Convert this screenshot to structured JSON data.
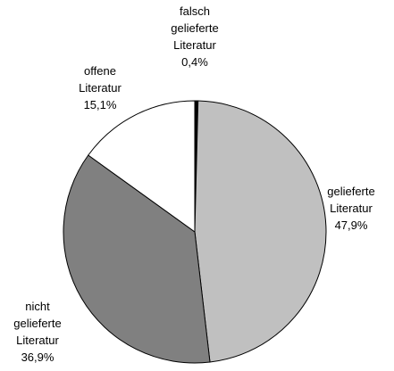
{
  "chart_data": {
    "type": "pie",
    "categories": [
      "falsch gelieferte Literatur",
      "gelieferte Literatur",
      "nicht gelieferte Literatur",
      "offene Literatur"
    ],
    "values": [
      0.4,
      47.9,
      36.9,
      15.1
    ],
    "value_labels": [
      "0,4%",
      "47,9%",
      "36,9%",
      "15,1%"
    ],
    "colors": [
      "#000000",
      "#c0c0c0",
      "#808080",
      "#ffffff"
    ]
  }
}
